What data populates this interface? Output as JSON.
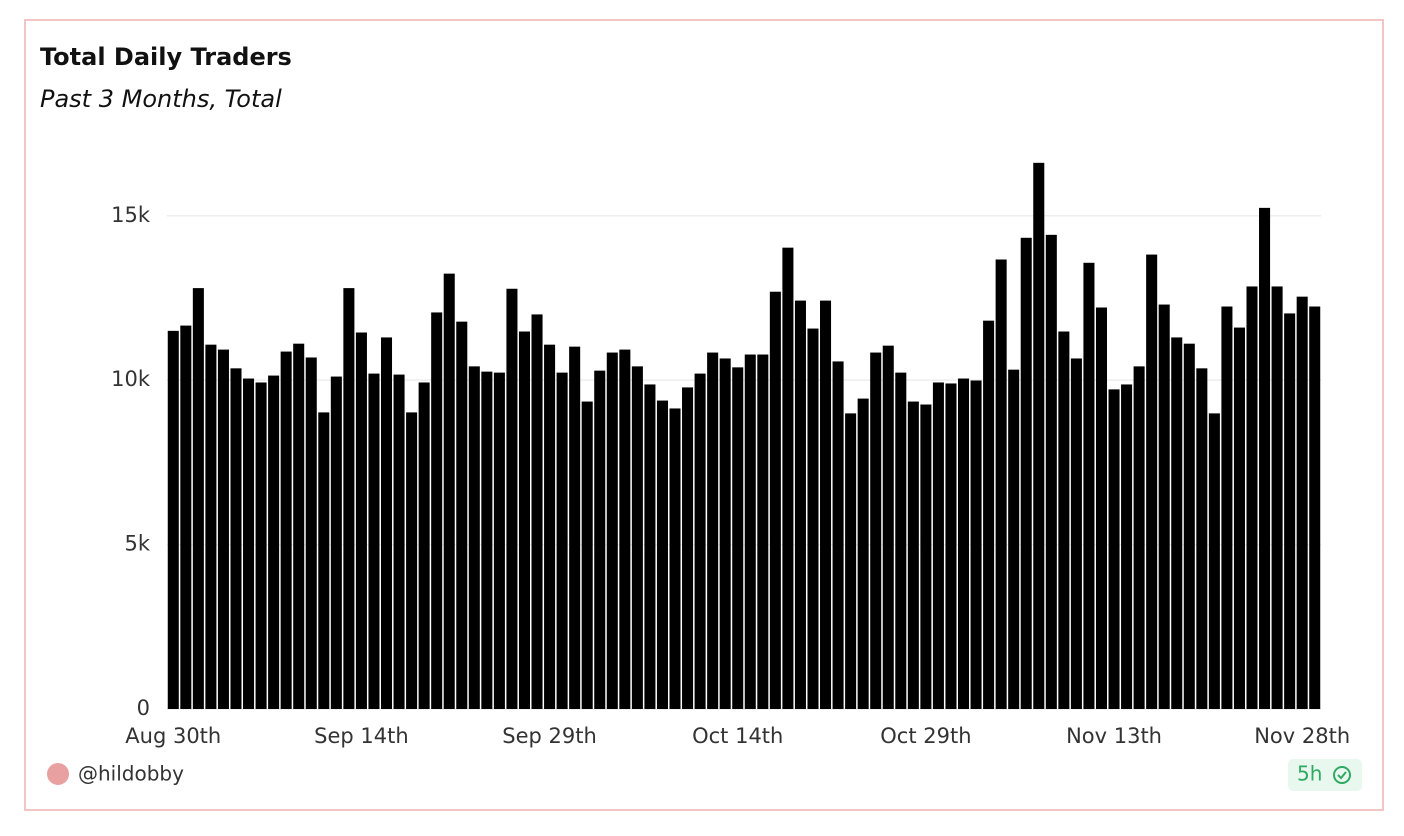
{
  "chart_data": {
    "type": "bar",
    "title": "Total Daily Traders",
    "subtitle": "Past 3 Months, Total",
    "categories": [
      "Aug 30th",
      null,
      null,
      null,
      null,
      null,
      null,
      null,
      null,
      null,
      null,
      null,
      null,
      null,
      null,
      "Sep 14th",
      null,
      null,
      null,
      null,
      null,
      null,
      null,
      null,
      null,
      null,
      null,
      null,
      null,
      null,
      "Sep 29th",
      null,
      null,
      null,
      null,
      null,
      null,
      null,
      null,
      null,
      null,
      null,
      null,
      null,
      null,
      "Oct 14th",
      null,
      null,
      null,
      null,
      null,
      null,
      null,
      null,
      null,
      null,
      null,
      null,
      null,
      null,
      "Oct 29th",
      null,
      null,
      null,
      null,
      null,
      null,
      null,
      null,
      null,
      null,
      null,
      null,
      null,
      null,
      "Nov 13th",
      null,
      null,
      null,
      null,
      null,
      null,
      null,
      null,
      null,
      null,
      null,
      null,
      null,
      null,
      "Nov 28th",
      null
    ],
    "values": [
      11500,
      11660,
      12800,
      11080,
      10930,
      10360,
      10050,
      9930,
      10140,
      10870,
      11110,
      10690,
      9020,
      10110,
      12800,
      11450,
      10200,
      11300,
      10170,
      9020,
      9930,
      12060,
      13240,
      11780,
      10420,
      10260,
      10230,
      12780,
      11480,
      12000,
      11080,
      10230,
      11020,
      9350,
      10290,
      10840,
      10930,
      10420,
      9870,
      9380,
      9140,
      9780,
      10200,
      10840,
      10660,
      10390,
      10780,
      10780,
      12690,
      14030,
      12420,
      11570,
      12420,
      10570,
      8990,
      9440,
      10840,
      11050,
      10230,
      9350,
      9260,
      9930,
      9900,
      10050,
      9990,
      11810,
      13670,
      10320,
      14330,
      16610,
      14420,
      11480,
      10660,
      13570,
      12210,
      9720,
      9870,
      10420,
      13820,
      12300,
      11300,
      11110,
      10360,
      8990,
      12240,
      11600,
      12850,
      15240,
      12850,
      12030,
      12540,
      12240
    ],
    "color": "#000000",
    "ylim": [
      0,
      17000
    ],
    "yticks": [
      0,
      {
        "value": 5000,
        "label": "5k"
      },
      {
        "value": 10000,
        "label": "10k"
      },
      {
        "value": 15000,
        "label": "15k"
      }
    ],
    "grid": true
  },
  "footer": {
    "author": "@hildobby",
    "age": "5h"
  }
}
